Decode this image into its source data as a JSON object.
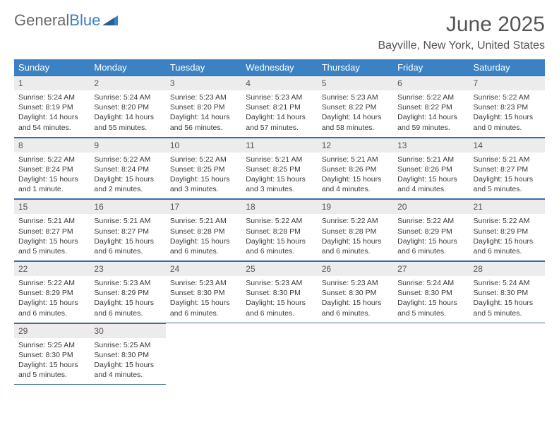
{
  "logo": {
    "text1": "General",
    "text2": "Blue"
  },
  "title": "June 2025",
  "location": "Bayville, New York, United States",
  "colors": {
    "header_bg": "#3b82c4",
    "header_fg": "#ffffff",
    "daynum_bg": "#ececec",
    "text": "#3a3a3a",
    "border": "#3b6ea5",
    "logo_gray": "#6b6b6b",
    "logo_blue": "#3b82c4"
  },
  "weekdays": [
    "Sunday",
    "Monday",
    "Tuesday",
    "Wednesday",
    "Thursday",
    "Friday",
    "Saturday"
  ],
  "days": [
    {
      "n": "1",
      "sr": "Sunrise: 5:24 AM",
      "ss": "Sunset: 8:19 PM",
      "dl": "Daylight: 14 hours and 54 minutes."
    },
    {
      "n": "2",
      "sr": "Sunrise: 5:24 AM",
      "ss": "Sunset: 8:20 PM",
      "dl": "Daylight: 14 hours and 55 minutes."
    },
    {
      "n": "3",
      "sr": "Sunrise: 5:23 AM",
      "ss": "Sunset: 8:20 PM",
      "dl": "Daylight: 14 hours and 56 minutes."
    },
    {
      "n": "4",
      "sr": "Sunrise: 5:23 AM",
      "ss": "Sunset: 8:21 PM",
      "dl": "Daylight: 14 hours and 57 minutes."
    },
    {
      "n": "5",
      "sr": "Sunrise: 5:23 AM",
      "ss": "Sunset: 8:22 PM",
      "dl": "Daylight: 14 hours and 58 minutes."
    },
    {
      "n": "6",
      "sr": "Sunrise: 5:22 AM",
      "ss": "Sunset: 8:22 PM",
      "dl": "Daylight: 14 hours and 59 minutes."
    },
    {
      "n": "7",
      "sr": "Sunrise: 5:22 AM",
      "ss": "Sunset: 8:23 PM",
      "dl": "Daylight: 15 hours and 0 minutes."
    },
    {
      "n": "8",
      "sr": "Sunrise: 5:22 AM",
      "ss": "Sunset: 8:24 PM",
      "dl": "Daylight: 15 hours and 1 minute."
    },
    {
      "n": "9",
      "sr": "Sunrise: 5:22 AM",
      "ss": "Sunset: 8:24 PM",
      "dl": "Daylight: 15 hours and 2 minutes."
    },
    {
      "n": "10",
      "sr": "Sunrise: 5:22 AM",
      "ss": "Sunset: 8:25 PM",
      "dl": "Daylight: 15 hours and 3 minutes."
    },
    {
      "n": "11",
      "sr": "Sunrise: 5:21 AM",
      "ss": "Sunset: 8:25 PM",
      "dl": "Daylight: 15 hours and 3 minutes."
    },
    {
      "n": "12",
      "sr": "Sunrise: 5:21 AM",
      "ss": "Sunset: 8:26 PM",
      "dl": "Daylight: 15 hours and 4 minutes."
    },
    {
      "n": "13",
      "sr": "Sunrise: 5:21 AM",
      "ss": "Sunset: 8:26 PM",
      "dl": "Daylight: 15 hours and 4 minutes."
    },
    {
      "n": "14",
      "sr": "Sunrise: 5:21 AM",
      "ss": "Sunset: 8:27 PM",
      "dl": "Daylight: 15 hours and 5 minutes."
    },
    {
      "n": "15",
      "sr": "Sunrise: 5:21 AM",
      "ss": "Sunset: 8:27 PM",
      "dl": "Daylight: 15 hours and 5 minutes."
    },
    {
      "n": "16",
      "sr": "Sunrise: 5:21 AM",
      "ss": "Sunset: 8:27 PM",
      "dl": "Daylight: 15 hours and 6 minutes."
    },
    {
      "n": "17",
      "sr": "Sunrise: 5:21 AM",
      "ss": "Sunset: 8:28 PM",
      "dl": "Daylight: 15 hours and 6 minutes."
    },
    {
      "n": "18",
      "sr": "Sunrise: 5:22 AM",
      "ss": "Sunset: 8:28 PM",
      "dl": "Daylight: 15 hours and 6 minutes."
    },
    {
      "n": "19",
      "sr": "Sunrise: 5:22 AM",
      "ss": "Sunset: 8:28 PM",
      "dl": "Daylight: 15 hours and 6 minutes."
    },
    {
      "n": "20",
      "sr": "Sunrise: 5:22 AM",
      "ss": "Sunset: 8:29 PM",
      "dl": "Daylight: 15 hours and 6 minutes."
    },
    {
      "n": "21",
      "sr": "Sunrise: 5:22 AM",
      "ss": "Sunset: 8:29 PM",
      "dl": "Daylight: 15 hours and 6 minutes."
    },
    {
      "n": "22",
      "sr": "Sunrise: 5:22 AM",
      "ss": "Sunset: 8:29 PM",
      "dl": "Daylight: 15 hours and 6 minutes."
    },
    {
      "n": "23",
      "sr": "Sunrise: 5:23 AM",
      "ss": "Sunset: 8:29 PM",
      "dl": "Daylight: 15 hours and 6 minutes."
    },
    {
      "n": "24",
      "sr": "Sunrise: 5:23 AM",
      "ss": "Sunset: 8:30 PM",
      "dl": "Daylight: 15 hours and 6 minutes."
    },
    {
      "n": "25",
      "sr": "Sunrise: 5:23 AM",
      "ss": "Sunset: 8:30 PM",
      "dl": "Daylight: 15 hours and 6 minutes."
    },
    {
      "n": "26",
      "sr": "Sunrise: 5:23 AM",
      "ss": "Sunset: 8:30 PM",
      "dl": "Daylight: 15 hours and 6 minutes."
    },
    {
      "n": "27",
      "sr": "Sunrise: 5:24 AM",
      "ss": "Sunset: 8:30 PM",
      "dl": "Daylight: 15 hours and 5 minutes."
    },
    {
      "n": "28",
      "sr": "Sunrise: 5:24 AM",
      "ss": "Sunset: 8:30 PM",
      "dl": "Daylight: 15 hours and 5 minutes."
    },
    {
      "n": "29",
      "sr": "Sunrise: 5:25 AM",
      "ss": "Sunset: 8:30 PM",
      "dl": "Daylight: 15 hours and 5 minutes."
    },
    {
      "n": "30",
      "sr": "Sunrise: 5:25 AM",
      "ss": "Sunset: 8:30 PM",
      "dl": "Daylight: 15 hours and 4 minutes."
    }
  ]
}
